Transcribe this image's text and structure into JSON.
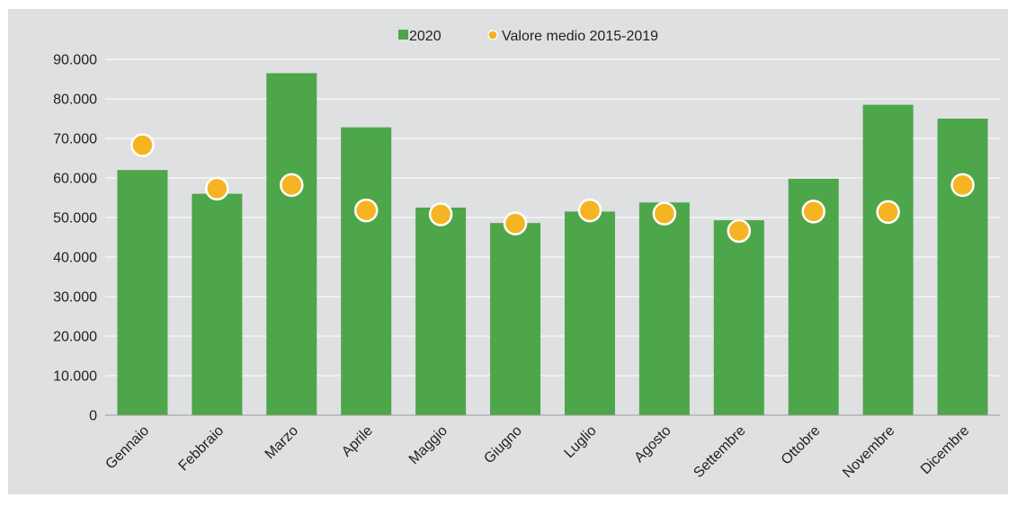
{
  "chart_data": {
    "type": "bar",
    "categories": [
      "Gennaio",
      "Febbraio",
      "Marzo",
      "Aprile",
      "Maggio",
      "Giugno",
      "Luglio",
      "Agosto",
      "Settembre",
      "Ottobre",
      "Novembre",
      "Dicembre"
    ],
    "series": [
      {
        "name": "2020",
        "kind": "bar",
        "color": "#4ea64a",
        "values": [
          62000,
          56000,
          86500,
          72800,
          52500,
          48600,
          51500,
          53800,
          49300,
          59800,
          78500,
          75000
        ]
      },
      {
        "name": "Valore medio 2015-2019",
        "kind": "point",
        "color": "#f6b322",
        "values": [
          68300,
          57300,
          58200,
          51800,
          50800,
          48500,
          51800,
          51000,
          46600,
          51500,
          51400,
          58200
        ]
      }
    ],
    "ylim": [
      0,
      90000
    ],
    "yticks": [
      "0",
      "10.000",
      "20.000",
      "30.000",
      "40.000",
      "50.000",
      "60.000",
      "70.000",
      "80.000",
      "90.000"
    ],
    "grid": true,
    "legend_position": "top-center",
    "background": "#dfe0e1",
    "gridline_color": "#ffffff"
  }
}
